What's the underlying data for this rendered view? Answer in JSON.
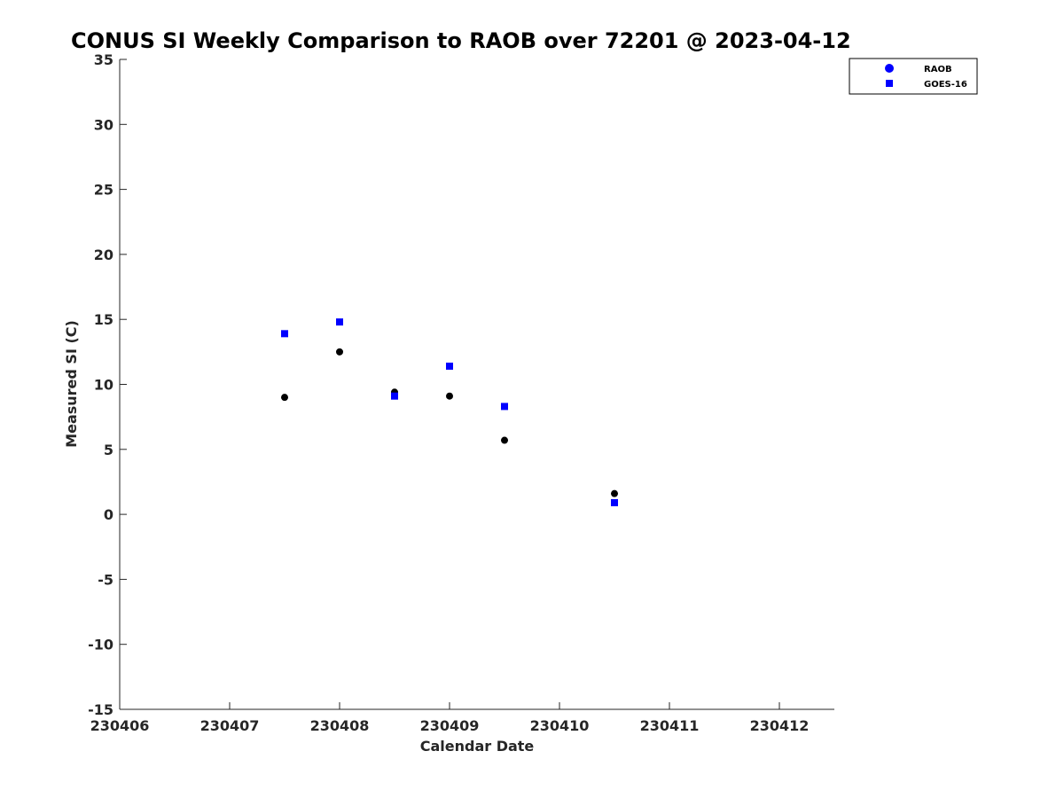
{
  "chart_data": {
    "type": "scatter",
    "title": "CONUS SI Weekly Comparison to RAOB over 72201 @ 2023-04-12",
    "xlabel": "Calendar Date",
    "ylabel": "Measured SI (C)",
    "xlim": [
      230406,
      230412.5
    ],
    "ylim": [
      -15,
      35
    ],
    "xticks": [
      230406,
      230407,
      230408,
      230409,
      230410,
      230411,
      230412
    ],
    "xtick_labels": [
      "230406",
      "230407",
      "230408",
      "230409",
      "230410",
      "230411",
      "230412"
    ],
    "yticks": [
      -15,
      -10,
      -5,
      0,
      5,
      10,
      15,
      20,
      25,
      30,
      35
    ],
    "ytick_labels": [
      "-15",
      "-10",
      "-5",
      "0",
      "5",
      "10",
      "15",
      "20",
      "25",
      "30",
      "35"
    ],
    "grid": false,
    "legend_position": "top-right",
    "series": [
      {
        "name": "RAOB",
        "marker": "circle",
        "color": "#000000",
        "legend_color": "#0000ff",
        "x": [
          230407.5,
          230408.0,
          230408.5,
          230409.0,
          230409.5,
          230410.5
        ],
        "y": [
          9.0,
          12.5,
          9.4,
          9.1,
          5.7,
          1.6
        ]
      },
      {
        "name": "GOES-16",
        "marker": "square",
        "color": "#0000ff",
        "legend_color": "#0000ff",
        "x": [
          230407.5,
          230408.0,
          230408.5,
          230409.0,
          230409.5,
          230410.5
        ],
        "y": [
          13.9,
          14.8,
          9.1,
          11.4,
          8.3,
          0.9
        ]
      }
    ]
  }
}
